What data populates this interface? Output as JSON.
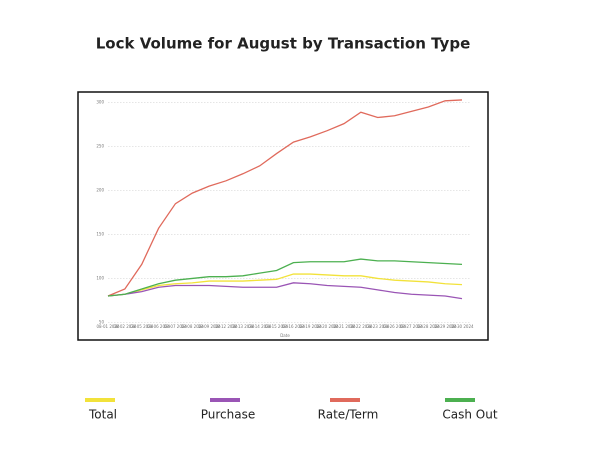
{
  "chart_data": {
    "type": "line",
    "title": "Lock Volume for August by Transaction Type",
    "xlabel": "Date",
    "categories": [
      "08-01 2024",
      "08-02 2024",
      "08-05 2024",
      "08-06 2024",
      "08-07 2024",
      "08-08 2024",
      "08-09 2024",
      "08-12 2024",
      "08-13 2024",
      "08-14 2024",
      "08-15 2024",
      "08-16 2024",
      "08-19 2024",
      "08-20 2024",
      "08-21 2024",
      "08-22 2024",
      "08-23 2024",
      "08-26 2024",
      "08-27 2024",
      "08-28 2024",
      "08-29 2024",
      "08-30 2024"
    ],
    "series": [
      {
        "name": "Total",
        "color": "#f2e23a",
        "values": [
          80,
          82,
          87,
          92,
          94,
          95,
          97,
          97,
          97,
          98,
          99,
          105,
          105,
          104,
          103,
          103,
          100,
          98,
          97,
          96,
          94,
          93
        ]
      },
      {
        "name": "Purchase",
        "color": "#9a55b5",
        "values": [
          80,
          82,
          85,
          90,
          92,
          92,
          92,
          91,
          90,
          90,
          90,
          95,
          94,
          92,
          91,
          90,
          87,
          84,
          82,
          81,
          80,
          77
        ]
      },
      {
        "name": "Rate/Term",
        "color": "#e06a5c",
        "values": [
          80,
          88,
          116,
          157,
          185,
          197,
          205,
          211,
          219,
          228,
          242,
          255,
          261,
          268,
          276,
          289,
          283,
          285,
          290,
          295,
          302,
          303
        ]
      },
      {
        "name": "Cash Out",
        "color": "#4cb050",
        "values": [
          80,
          82,
          88,
          94,
          98,
          100,
          102,
          102,
          103,
          106,
          109,
          118,
          119,
          119,
          119,
          122,
          120,
          120,
          119,
          118,
          117,
          116
        ]
      }
    ],
    "ylim": [
      30,
      312
    ],
    "yticks": [
      50,
      100,
      150,
      200,
      250,
      300
    ],
    "grid": true
  }
}
